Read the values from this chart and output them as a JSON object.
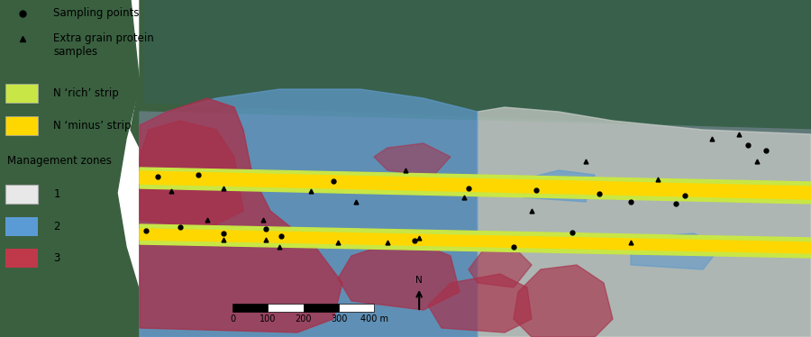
{
  "fig_width": 9.0,
  "fig_height": 3.74,
  "dpi": 100,
  "legend": {
    "sampling_points_label": "Sampling points",
    "extra_grain_label": "Extra grain protein\nsamples",
    "n_rich_label": "N ‘rich’ strip",
    "n_minus_label": "N ‘minus’ strip",
    "n_rich_color": "#c8e645",
    "n_minus_color": "#ffd700",
    "zone1_label": "1",
    "zone2_label": "2",
    "zone3_label": "3",
    "zone1_color": "#e8e8e8",
    "zone2_color": "#5b9bd5",
    "zone3_color": "#c0394b",
    "management_zones_title": "Management zones",
    "font_size": 8.5
  },
  "map": {
    "bg_teal": "#3d6b5e",
    "field_green": "#3c6b4a",
    "zone1_col": "#c8ccc8",
    "zone2_col": "#5f99cc",
    "zone3_col": "#a8304a",
    "strip_green": "#c8e645",
    "strip_yellow": "#ffd700"
  },
  "scalebar": {
    "labels": [
      "0",
      "100",
      "200",
      "300",
      "400 m"
    ]
  }
}
